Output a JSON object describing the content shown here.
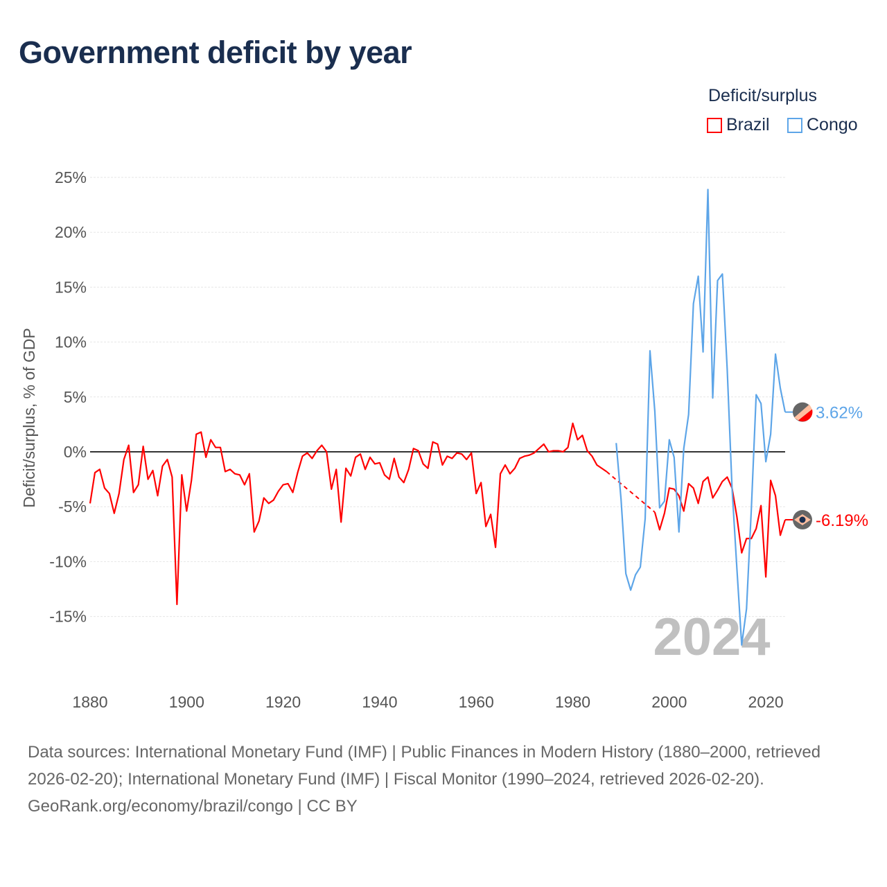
{
  "title": "Government deficit by year",
  "legend": {
    "title": "Deficit/surplus",
    "items": [
      {
        "name": "Brazil",
        "color": "#ff0000"
      },
      {
        "name": "Congo",
        "color": "#5da5e8"
      }
    ]
  },
  "watermark_year": "2024",
  "footer": {
    "sources": "Data sources: International Monetary Fund (IMF) | Public Finances in Modern History (1880–2000, retrieved 2026-02-20); International Monetary Fund (IMF) | Fiscal Monitor (1990–2024, retrieved 2026-02-20).",
    "credit": "GeoRank.org/economy/brazil/congo | CC BY"
  },
  "chart_data": {
    "type": "line",
    "title": "Government deficit by year",
    "xlabel": "",
    "ylabel": "Deficit/surplus, % of GDP",
    "xlim": [
      1880,
      2024
    ],
    "ylim": [
      -20,
      25
    ],
    "yticks": [
      25,
      20,
      15,
      10,
      5,
      0,
      -5,
      -10,
      -15
    ],
    "ytick_labels": [
      "25%",
      "20%",
      "15%",
      "10%",
      "5%",
      "0%",
      "-5%",
      "-10%",
      "-15%"
    ],
    "xticks": [
      1880,
      1900,
      1920,
      1940,
      1960,
      1980,
      2000,
      2020
    ],
    "xtick_labels": [
      "1880",
      "1900",
      "1920",
      "1940",
      "1960",
      "1980",
      "2000",
      "2020"
    ],
    "grid": true,
    "legend_position": "top-right",
    "series": [
      {
        "name": "Brazil",
        "color": "#ff0000",
        "start_year": 1880,
        "end_label": "-6.19%",
        "values": [
          -4.7,
          -1.9,
          -1.6,
          -3.3,
          -3.8,
          -5.6,
          -3.8,
          -0.7,
          0.6,
          -3.7,
          -3.0,
          0.5,
          -2.5,
          -1.7,
          -4.0,
          -1.3,
          -0.7,
          -2.3,
          -13.9,
          -2.1,
          -5.4,
          -2.6,
          1.6,
          1.8,
          -0.5,
          1.1,
          0.4,
          0.4,
          -1.8,
          -1.6,
          -2.0,
          -2.1,
          -3.0,
          -2.0,
          -7.3,
          -6.3,
          -4.2,
          -4.7,
          -4.4,
          -3.6,
          -3.0,
          -2.9,
          -3.7,
          -1.9,
          -0.4,
          -0.1,
          -0.6,
          0.1,
          0.6,
          0.0,
          -3.4,
          -1.6,
          -6.4,
          -1.5,
          -2.2,
          -0.5,
          -0.2,
          -1.6,
          -0.5,
          -1.1,
          -1.0,
          -2.1,
          -2.5,
          -0.6,
          -2.3,
          -2.8,
          -1.6,
          0.3,
          0.1,
          -1.1,
          -1.5,
          0.9,
          0.7,
          -1.2,
          -0.4,
          -0.6,
          -0.1,
          -0.2,
          -0.7,
          -0.1,
          -3.8,
          -2.8,
          -6.8,
          -5.7,
          -8.7,
          -2.0,
          -1.2,
          -2.0,
          -1.5,
          -0.6,
          -0.4,
          -0.3,
          -0.1,
          0.3,
          0.7,
          0.0,
          0.1,
          0.1,
          0.0,
          0.4,
          2.6,
          1.1,
          1.5,
          0.1,
          -0.4,
          -1.2,
          -1.5,
          -1.8,
          null,
          null,
          null,
          null,
          null,
          null,
          null,
          null,
          null,
          -5.5,
          -7.1,
          -5.6,
          -3.3,
          -3.4,
          -4.0,
          -5.4,
          -2.9,
          -3.3,
          -4.7,
          -2.7,
          -2.3,
          -4.2,
          -3.5,
          -2.7,
          -2.3,
          -3.3,
          -5.9,
          -9.2,
          -7.9,
          -7.9,
          -7.0,
          -4.9,
          -11.4,
          -2.6,
          -4.0,
          -7.6,
          -6.19
        ]
      },
      {
        "name": "Congo",
        "color": "#5da5e8",
        "start_year": 1989,
        "end_label": "3.62%",
        "values": [
          0.8,
          -4.3,
          -11.1,
          -12.6,
          -11.2,
          -10.5,
          -6.1,
          9.2,
          3.7,
          -5.1,
          -4.5,
          1.1,
          -0.5,
          -7.3,
          0.3,
          3.4,
          13.5,
          16.0,
          9.1,
          23.9,
          4.9,
          15.6,
          16.2,
          7.5,
          -3.3,
          -10.6,
          -17.6,
          -14.3,
          -5.2,
          5.2,
          4.4,
          -0.9,
          1.6,
          8.9,
          5.8,
          3.62
        ]
      }
    ]
  }
}
